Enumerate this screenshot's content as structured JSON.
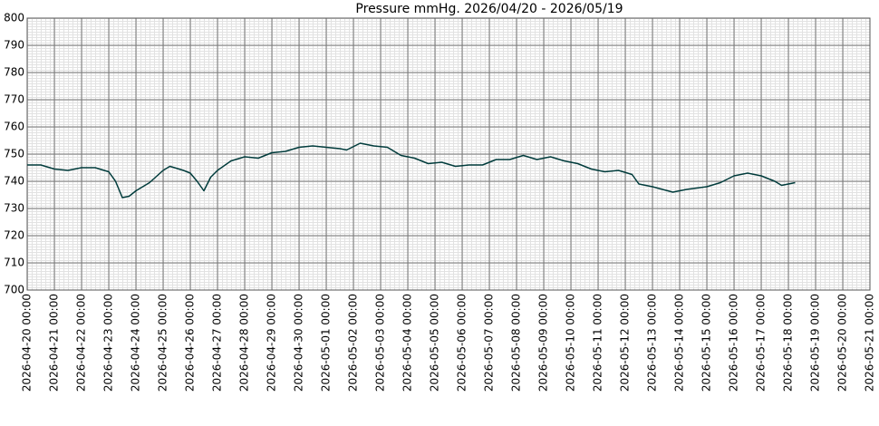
{
  "chart_data": {
    "type": "line",
    "title": "Pressure mmHg. 2026/04/20 - 2026/05/19",
    "x": [
      "2026-04-20 00:00",
      "2026-04-20 12:00",
      "2026-04-21 00:00",
      "2026-04-21 12:00",
      "2026-04-22 00:00",
      "2026-04-22 12:00",
      "2026-04-23 00:00",
      "2026-04-23 06:00",
      "2026-04-23 12:00",
      "2026-04-23 18:00",
      "2026-04-24 00:00",
      "2026-04-24 12:00",
      "2026-04-25 00:00",
      "2026-04-25 06:00",
      "2026-04-25 18:00",
      "2026-04-26 00:00",
      "2026-04-26 06:00",
      "2026-04-26 12:00",
      "2026-04-26 18:00",
      "2026-04-27 00:00",
      "2026-04-27 12:00",
      "2026-04-28 00:00",
      "2026-04-28 12:00",
      "2026-04-29 00:00",
      "2026-04-29 12:00",
      "2026-04-30 00:00",
      "2026-04-30 12:00",
      "2026-05-01 00:00",
      "2026-05-01 12:00",
      "2026-05-01 18:00",
      "2026-05-02 06:00",
      "2026-05-02 18:00",
      "2026-05-03 06:00",
      "2026-05-03 18:00",
      "2026-05-04 06:00",
      "2026-05-04 18:00",
      "2026-05-05 06:00",
      "2026-05-05 18:00",
      "2026-05-06 06:00",
      "2026-05-06 18:00",
      "2026-05-07 06:00",
      "2026-05-07 18:00",
      "2026-05-08 06:00",
      "2026-05-08 18:00",
      "2026-05-09 06:00",
      "2026-05-09 18:00",
      "2026-05-10 06:00",
      "2026-05-10 18:00",
      "2026-05-11 06:00",
      "2026-05-11 18:00",
      "2026-05-12 06:00",
      "2026-05-12 12:00",
      "2026-05-13 00:00",
      "2026-05-13 18:00",
      "2026-05-14 06:00",
      "2026-05-15 00:00",
      "2026-05-15 12:00",
      "2026-05-16 00:00",
      "2026-05-16 12:00",
      "2026-05-17 00:00",
      "2026-05-17 12:00",
      "2026-05-17 18:00",
      "2026-05-18 06:00"
    ],
    "series": [
      {
        "color": "#003b3b",
        "values": [
          746,
          746,
          744.5,
          744,
          745,
          745,
          743.5,
          740,
          734,
          734.5,
          736.5,
          739.5,
          744,
          745.5,
          744,
          743,
          740,
          736.5,
          741.5,
          744,
          747.5,
          749,
          748.5,
          750.5,
          751,
          752.5,
          753,
          752.5,
          752,
          751.5,
          754,
          753,
          752.5,
          749.5,
          748.5,
          746.5,
          747,
          745.5,
          746,
          746,
          748,
          748,
          749.5,
          748,
          749,
          747.5,
          746.5,
          744.5,
          743.5,
          744,
          742.5,
          739,
          738,
          736,
          737,
          738,
          739.5,
          742,
          743,
          742,
          740,
          738.5,
          739.5
        ]
      }
    ],
    "xlim": [
      "2026-04-20 00:00",
      "2026-05-21 00:00"
    ],
    "xticks": [
      "2026-04-20 00:00",
      "2026-04-21 00:00",
      "2026-04-22 00:00",
      "2026-04-23 00:00",
      "2026-04-24 00:00",
      "2026-04-25 00:00",
      "2026-04-26 00:00",
      "2026-04-27 00:00",
      "2026-04-28 00:00",
      "2026-04-29 00:00",
      "2026-04-30 00:00",
      "2026-05-01 00:00",
      "2026-05-02 00:00",
      "2026-05-03 00:00",
      "2026-05-04 00:00",
      "2026-05-05 00:00",
      "2026-05-06 00:00",
      "2026-05-07 00:00",
      "2026-05-08 00:00",
      "2026-05-09 00:00",
      "2026-05-10 00:00",
      "2026-05-11 00:00",
      "2026-05-12 00:00",
      "2026-05-13 00:00",
      "2026-05-14 00:00",
      "2026-05-15 00:00",
      "2026-05-16 00:00",
      "2026-05-17 00:00",
      "2026-05-18 00:00",
      "2026-05-19 00:00",
      "2026-05-20 00:00",
      "2026-05-21 00:00"
    ],
    "ylim": [
      700,
      800
    ],
    "yticks": [
      700,
      710,
      720,
      730,
      740,
      750,
      760,
      770,
      780,
      790,
      800
    ],
    "grid": true
  }
}
